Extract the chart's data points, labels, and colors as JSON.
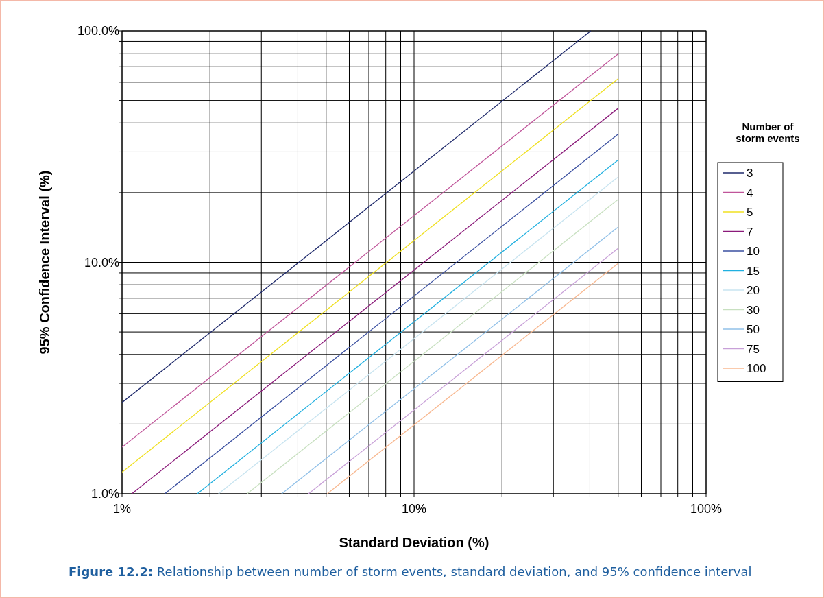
{
  "chart_data": {
    "type": "line",
    "xlabel": "Standard Deviation (%)",
    "ylabel": "95% Confidence Interval (%)",
    "legend_title": "Number of storm events",
    "log": "xy",
    "grid": true,
    "legend": "right",
    "line_style": "solid",
    "xlim": [
      1,
      100
    ],
    "ylim": [
      1,
      100
    ],
    "xticks": [
      {
        "value": 1,
        "label": "1%"
      },
      {
        "value": 2,
        "label": null
      },
      {
        "value": 3,
        "label": null
      },
      {
        "value": 4,
        "label": null
      },
      {
        "value": 5,
        "label": null
      },
      {
        "value": 6,
        "label": null
      },
      {
        "value": 7,
        "label": null
      },
      {
        "value": 8,
        "label": null
      },
      {
        "value": 9,
        "label": null
      },
      {
        "value": 10,
        "label": "10%"
      },
      {
        "value": 20,
        "label": null
      },
      {
        "value": 30,
        "label": null
      },
      {
        "value": 40,
        "label": null
      },
      {
        "value": 50,
        "label": null
      },
      {
        "value": 60,
        "label": null
      },
      {
        "value": 70,
        "label": null
      },
      {
        "value": 80,
        "label": null
      },
      {
        "value": 90,
        "label": null
      },
      {
        "value": 100,
        "label": "100%"
      }
    ],
    "yticks": [
      {
        "value": 1,
        "label": "1.0%"
      },
      {
        "value": 2,
        "label": null
      },
      {
        "value": 3,
        "label": null
      },
      {
        "value": 4,
        "label": null
      },
      {
        "value": 5,
        "label": null
      },
      {
        "value": 6,
        "label": null
      },
      {
        "value": 7,
        "label": null
      },
      {
        "value": 8,
        "label": null
      },
      {
        "value": 9,
        "label": null
      },
      {
        "value": 10,
        "label": "10.0%"
      },
      {
        "value": 20,
        "label": null
      },
      {
        "value": 30,
        "label": null
      },
      {
        "value": 40,
        "label": null
      },
      {
        "value": 50,
        "label": null
      },
      {
        "value": 60,
        "label": null
      },
      {
        "value": 70,
        "label": null
      },
      {
        "value": 80,
        "label": null
      },
      {
        "value": 90,
        "label": null
      },
      {
        "value": 100,
        "label": "100.0%"
      }
    ],
    "series": [
      {
        "name": "3",
        "color": "#1f2a6b",
        "x": [
          1,
          40.3
        ],
        "values": [
          2.48,
          100
        ]
      },
      {
        "name": "4",
        "color": "#c0559a",
        "x": [
          1,
          50
        ],
        "values": [
          1.59,
          79.6
        ]
      },
      {
        "name": "5",
        "color": "#f0e020",
        "x": [
          1,
          50
        ],
        "values": [
          1.24,
          62.1
        ]
      },
      {
        "name": "7",
        "color": "#8b1a7a",
        "x": [
          1.08,
          50
        ],
        "values": [
          1,
          46.3
        ]
      },
      {
        "name": "10",
        "color": "#3a4fa0",
        "x": [
          1.4,
          50
        ],
        "values": [
          1,
          35.8
        ]
      },
      {
        "name": "15",
        "color": "#20b0e0",
        "x": [
          1.81,
          50
        ],
        "values": [
          1,
          27.7
        ]
      },
      {
        "name": "20",
        "color": "#c8e4f0",
        "x": [
          2.14,
          50
        ],
        "values": [
          1,
          23.4
        ]
      },
      {
        "name": "30",
        "color": "#c8e0c0",
        "x": [
          2.68,
          50
        ],
        "values": [
          1,
          18.7
        ]
      },
      {
        "name": "50",
        "color": "#90c0e8",
        "x": [
          3.52,
          50
        ],
        "values": [
          1,
          14.2
        ]
      },
      {
        "name": "75",
        "color": "#c8a0d8",
        "x": [
          4.35,
          50
        ],
        "values": [
          1,
          11.5
        ]
      },
      {
        "name": "100",
        "color": "#f8b890",
        "x": [
          5.04,
          50
        ],
        "values": [
          1,
          9.9
        ]
      }
    ],
    "annotations": [
      "Figure 12.2: Relationship between number of storm events, standard deviation, and 95% confidence interval"
    ]
  }
}
